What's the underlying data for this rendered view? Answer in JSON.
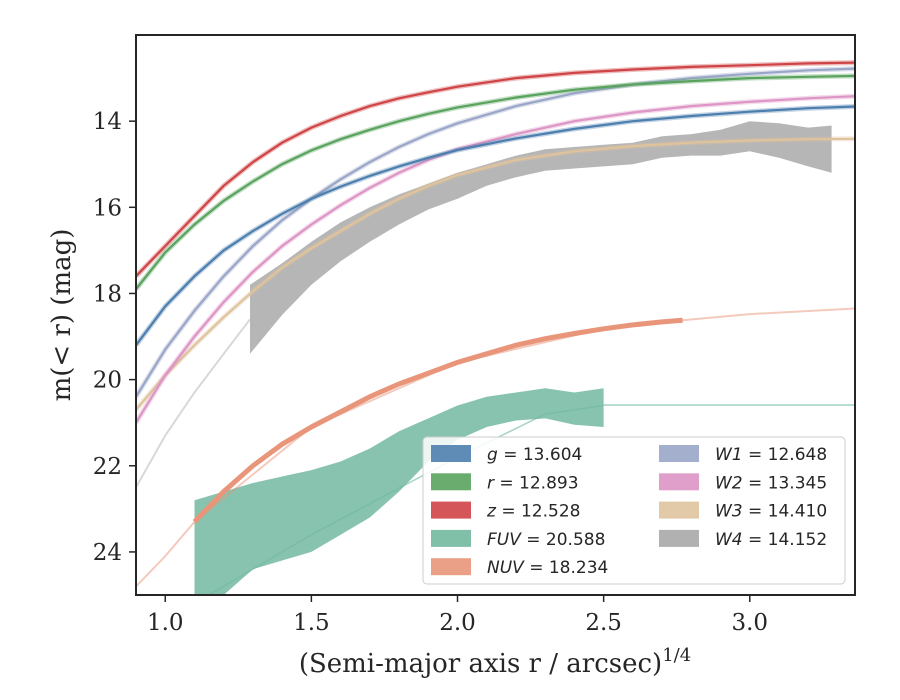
{
  "chart_data": {
    "type": "line",
    "xlabel": "(Semi-major axis r / arcsec)",
    "xlabel_exponent": "1/4",
    "ylabel": "m(< r) (mag)",
    "xlim": [
      0.9,
      3.36
    ],
    "ylim": [
      25.0,
      12.0
    ],
    "y_inverted": true,
    "xticks": [
      1.0,
      1.5,
      2.0,
      2.5,
      3.0
    ],
    "xtick_labels": [
      "1.0",
      "1.5",
      "2.0",
      "2.5",
      "3.0"
    ],
    "yticks": [
      14,
      16,
      18,
      20,
      22,
      24
    ],
    "ytick_labels": [
      "14",
      "16",
      "18",
      "20",
      "22",
      "24"
    ],
    "grid": false,
    "legend_position": "lower-right",
    "series": [
      {
        "name": "g",
        "label": "g = 13.604",
        "color": "#4c7fae",
        "x": [
          0.9,
          1.0,
          1.1,
          1.2,
          1.3,
          1.4,
          1.5,
          1.6,
          1.7,
          1.8,
          1.9,
          2.0,
          2.2,
          2.4,
          2.6,
          2.8,
          3.0,
          3.2,
          3.36
        ],
        "y": [
          19.2,
          18.3,
          17.6,
          17.0,
          16.55,
          16.15,
          15.8,
          15.52,
          15.27,
          15.05,
          14.85,
          14.67,
          14.4,
          14.18,
          14.0,
          13.88,
          13.78,
          13.7,
          13.66
        ]
      },
      {
        "name": "r",
        "label": "r = 12.893",
        "color": "#5aa35e",
        "x": [
          0.9,
          1.0,
          1.1,
          1.2,
          1.3,
          1.4,
          1.5,
          1.6,
          1.7,
          1.8,
          1.9,
          2.0,
          2.2,
          2.4,
          2.6,
          2.8,
          3.0,
          3.2,
          3.36
        ],
        "y": [
          17.9,
          17.05,
          16.4,
          15.85,
          15.4,
          15.0,
          14.68,
          14.42,
          14.2,
          14.0,
          13.83,
          13.68,
          13.45,
          13.27,
          13.15,
          13.07,
          13.0,
          12.97,
          12.95
        ]
      },
      {
        "name": "z",
        "label": "z = 12.528",
        "color": "#cf4446",
        "x": [
          0.9,
          1.0,
          1.1,
          1.2,
          1.3,
          1.4,
          1.5,
          1.6,
          1.7,
          1.8,
          1.9,
          2.0,
          2.2,
          2.4,
          2.6,
          2.8,
          3.0,
          3.2,
          3.36
        ],
        "y": [
          17.6,
          16.9,
          16.2,
          15.5,
          14.95,
          14.5,
          14.15,
          13.88,
          13.65,
          13.47,
          13.33,
          13.2,
          13.0,
          12.88,
          12.8,
          12.74,
          12.7,
          12.66,
          12.64
        ]
      },
      {
        "name": "W1",
        "label": "W1 = 12.648",
        "color": "#9aa6c8",
        "x": [
          0.9,
          1.0,
          1.1,
          1.2,
          1.3,
          1.4,
          1.5,
          1.6,
          1.7,
          1.8,
          1.9,
          2.0,
          2.2,
          2.4,
          2.6,
          2.8,
          3.0,
          3.2,
          3.36
        ],
        "y": [
          20.4,
          19.3,
          18.4,
          17.6,
          16.9,
          16.3,
          15.8,
          15.35,
          14.95,
          14.6,
          14.3,
          14.05,
          13.65,
          13.35,
          13.15,
          13.0,
          12.9,
          12.82,
          12.78
        ]
      },
      {
        "name": "W2",
        "label": "W2 = 13.345",
        "color": "#dd95c5",
        "x": [
          0.9,
          1.0,
          1.1,
          1.2,
          1.3,
          1.4,
          1.5,
          1.6,
          1.7,
          1.8,
          1.9,
          2.0,
          2.2,
          2.4,
          2.6,
          2.8,
          3.0,
          3.2,
          3.36
        ],
        "y": [
          21.0,
          19.9,
          19.0,
          18.2,
          17.5,
          16.9,
          16.4,
          15.95,
          15.55,
          15.2,
          14.9,
          14.65,
          14.3,
          14.0,
          13.8,
          13.65,
          13.55,
          13.47,
          13.42
        ]
      },
      {
        "name": "W3",
        "label": "W3 = 14.410",
        "color": "#dfc39d",
        "x": [
          0.9,
          1.0,
          1.1,
          1.2,
          1.3,
          1.4,
          1.5,
          1.6,
          1.7,
          1.8,
          1.9,
          2.0,
          2.2,
          2.4,
          2.6,
          2.8,
          3.0,
          3.2,
          3.36
        ],
        "y": [
          20.7,
          19.9,
          19.2,
          18.55,
          17.95,
          17.4,
          16.95,
          16.55,
          16.15,
          15.8,
          15.5,
          15.25,
          14.9,
          14.7,
          14.58,
          14.5,
          14.45,
          14.42,
          14.41
        ]
      },
      {
        "name": "W4",
        "label": "W4 = 14.152",
        "color": "#a9a9a9",
        "x": [
          1.29,
          1.4,
          1.5,
          1.6,
          1.7,
          1.8,
          1.9,
          2.0,
          2.1,
          2.2,
          2.3,
          2.4,
          2.5,
          2.6,
          2.7,
          2.8,
          2.9,
          3.0,
          3.1,
          3.2,
          3.28
        ],
        "y": [
          18.6,
          17.9,
          17.3,
          16.8,
          16.4,
          16.05,
          15.75,
          15.5,
          15.25,
          15.05,
          14.9,
          14.85,
          14.8,
          14.75,
          14.6,
          14.55,
          14.5,
          14.35,
          14.45,
          14.6,
          14.65
        ],
        "band_halfwidth": [
          0.8,
          0.6,
          0.5,
          0.45,
          0.4,
          0.35,
          0.3,
          0.3,
          0.25,
          0.25,
          0.25,
          0.25,
          0.25,
          0.25,
          0.25,
          0.25,
          0.3,
          0.35,
          0.4,
          0.45,
          0.55
        ],
        "extrapolation_x": [
          0.9,
          1.0,
          1.1,
          1.2,
          1.29
        ],
        "extrapolation_y": [
          22.5,
          21.3,
          20.3,
          19.4,
          18.6
        ]
      },
      {
        "name": "FUV",
        "label": "FUV = 20.588",
        "color": "#72b9a0",
        "x": [
          1.1,
          1.2,
          1.3,
          1.4,
          1.5,
          1.6,
          1.7,
          1.8,
          1.9,
          2.0,
          2.1,
          2.2,
          2.3,
          2.4,
          2.5
        ],
        "y_upper": [
          22.8,
          22.6,
          22.4,
          22.25,
          22.1,
          21.9,
          21.6,
          21.2,
          20.9,
          20.6,
          20.4,
          20.3,
          20.2,
          20.3,
          20.2
        ],
        "y_lower": [
          25.3,
          25.0,
          24.4,
          24.2,
          24.0,
          23.6,
          23.2,
          22.6,
          21.9,
          21.4,
          21.1,
          20.95,
          20.9,
          21.05,
          21.1
        ],
        "asymptote": 20.588
      },
      {
        "name": "NUV",
        "label": "NUV = 18.234",
        "color": "#e8957a",
        "x": [
          1.1,
          1.2,
          1.3,
          1.4,
          1.5,
          1.6,
          1.7,
          1.8,
          1.9,
          2.0,
          2.1,
          2.2,
          2.3,
          2.4,
          2.5,
          2.6,
          2.7,
          2.77
        ],
        "y": [
          23.3,
          22.6,
          22.0,
          21.5,
          21.1,
          20.75,
          20.4,
          20.1,
          19.85,
          19.6,
          19.4,
          19.2,
          19.05,
          18.93,
          18.82,
          18.73,
          18.66,
          18.62
        ],
        "extrapolation_x": [
          0.9,
          1.0,
          1.1,
          1.5,
          2.0,
          2.5,
          2.77,
          3.0,
          3.36
        ],
        "extrapolation_y": [
          24.8,
          24.1,
          23.3,
          21.1,
          19.6,
          18.82,
          18.62,
          18.48,
          18.35
        ]
      }
    ]
  },
  "legend": {
    "col1": [
      {
        "sym": "g",
        "val": "= 13.604",
        "color": "#4c7fae"
      },
      {
        "sym": "r",
        "val": "= 12.893",
        "color": "#5aa35e"
      },
      {
        "sym": "z",
        "val": "= 12.528",
        "color": "#cf4446"
      },
      {
        "sym": "FUV",
        "val": "= 20.588",
        "color": "#72b9a0"
      },
      {
        "sym": "NUV",
        "val": "= 18.234",
        "color": "#e8957a"
      }
    ],
    "col2": [
      {
        "sym": "W1",
        "val": "= 12.648",
        "color": "#9aa6c8"
      },
      {
        "sym": "W2",
        "val": "= 13.345",
        "color": "#dd95c5"
      },
      {
        "sym": "W3",
        "val": "= 14.410",
        "color": "#dfc39d"
      },
      {
        "sym": "W4",
        "val": "= 14.152",
        "color": "#a9a9a9"
      }
    ]
  }
}
